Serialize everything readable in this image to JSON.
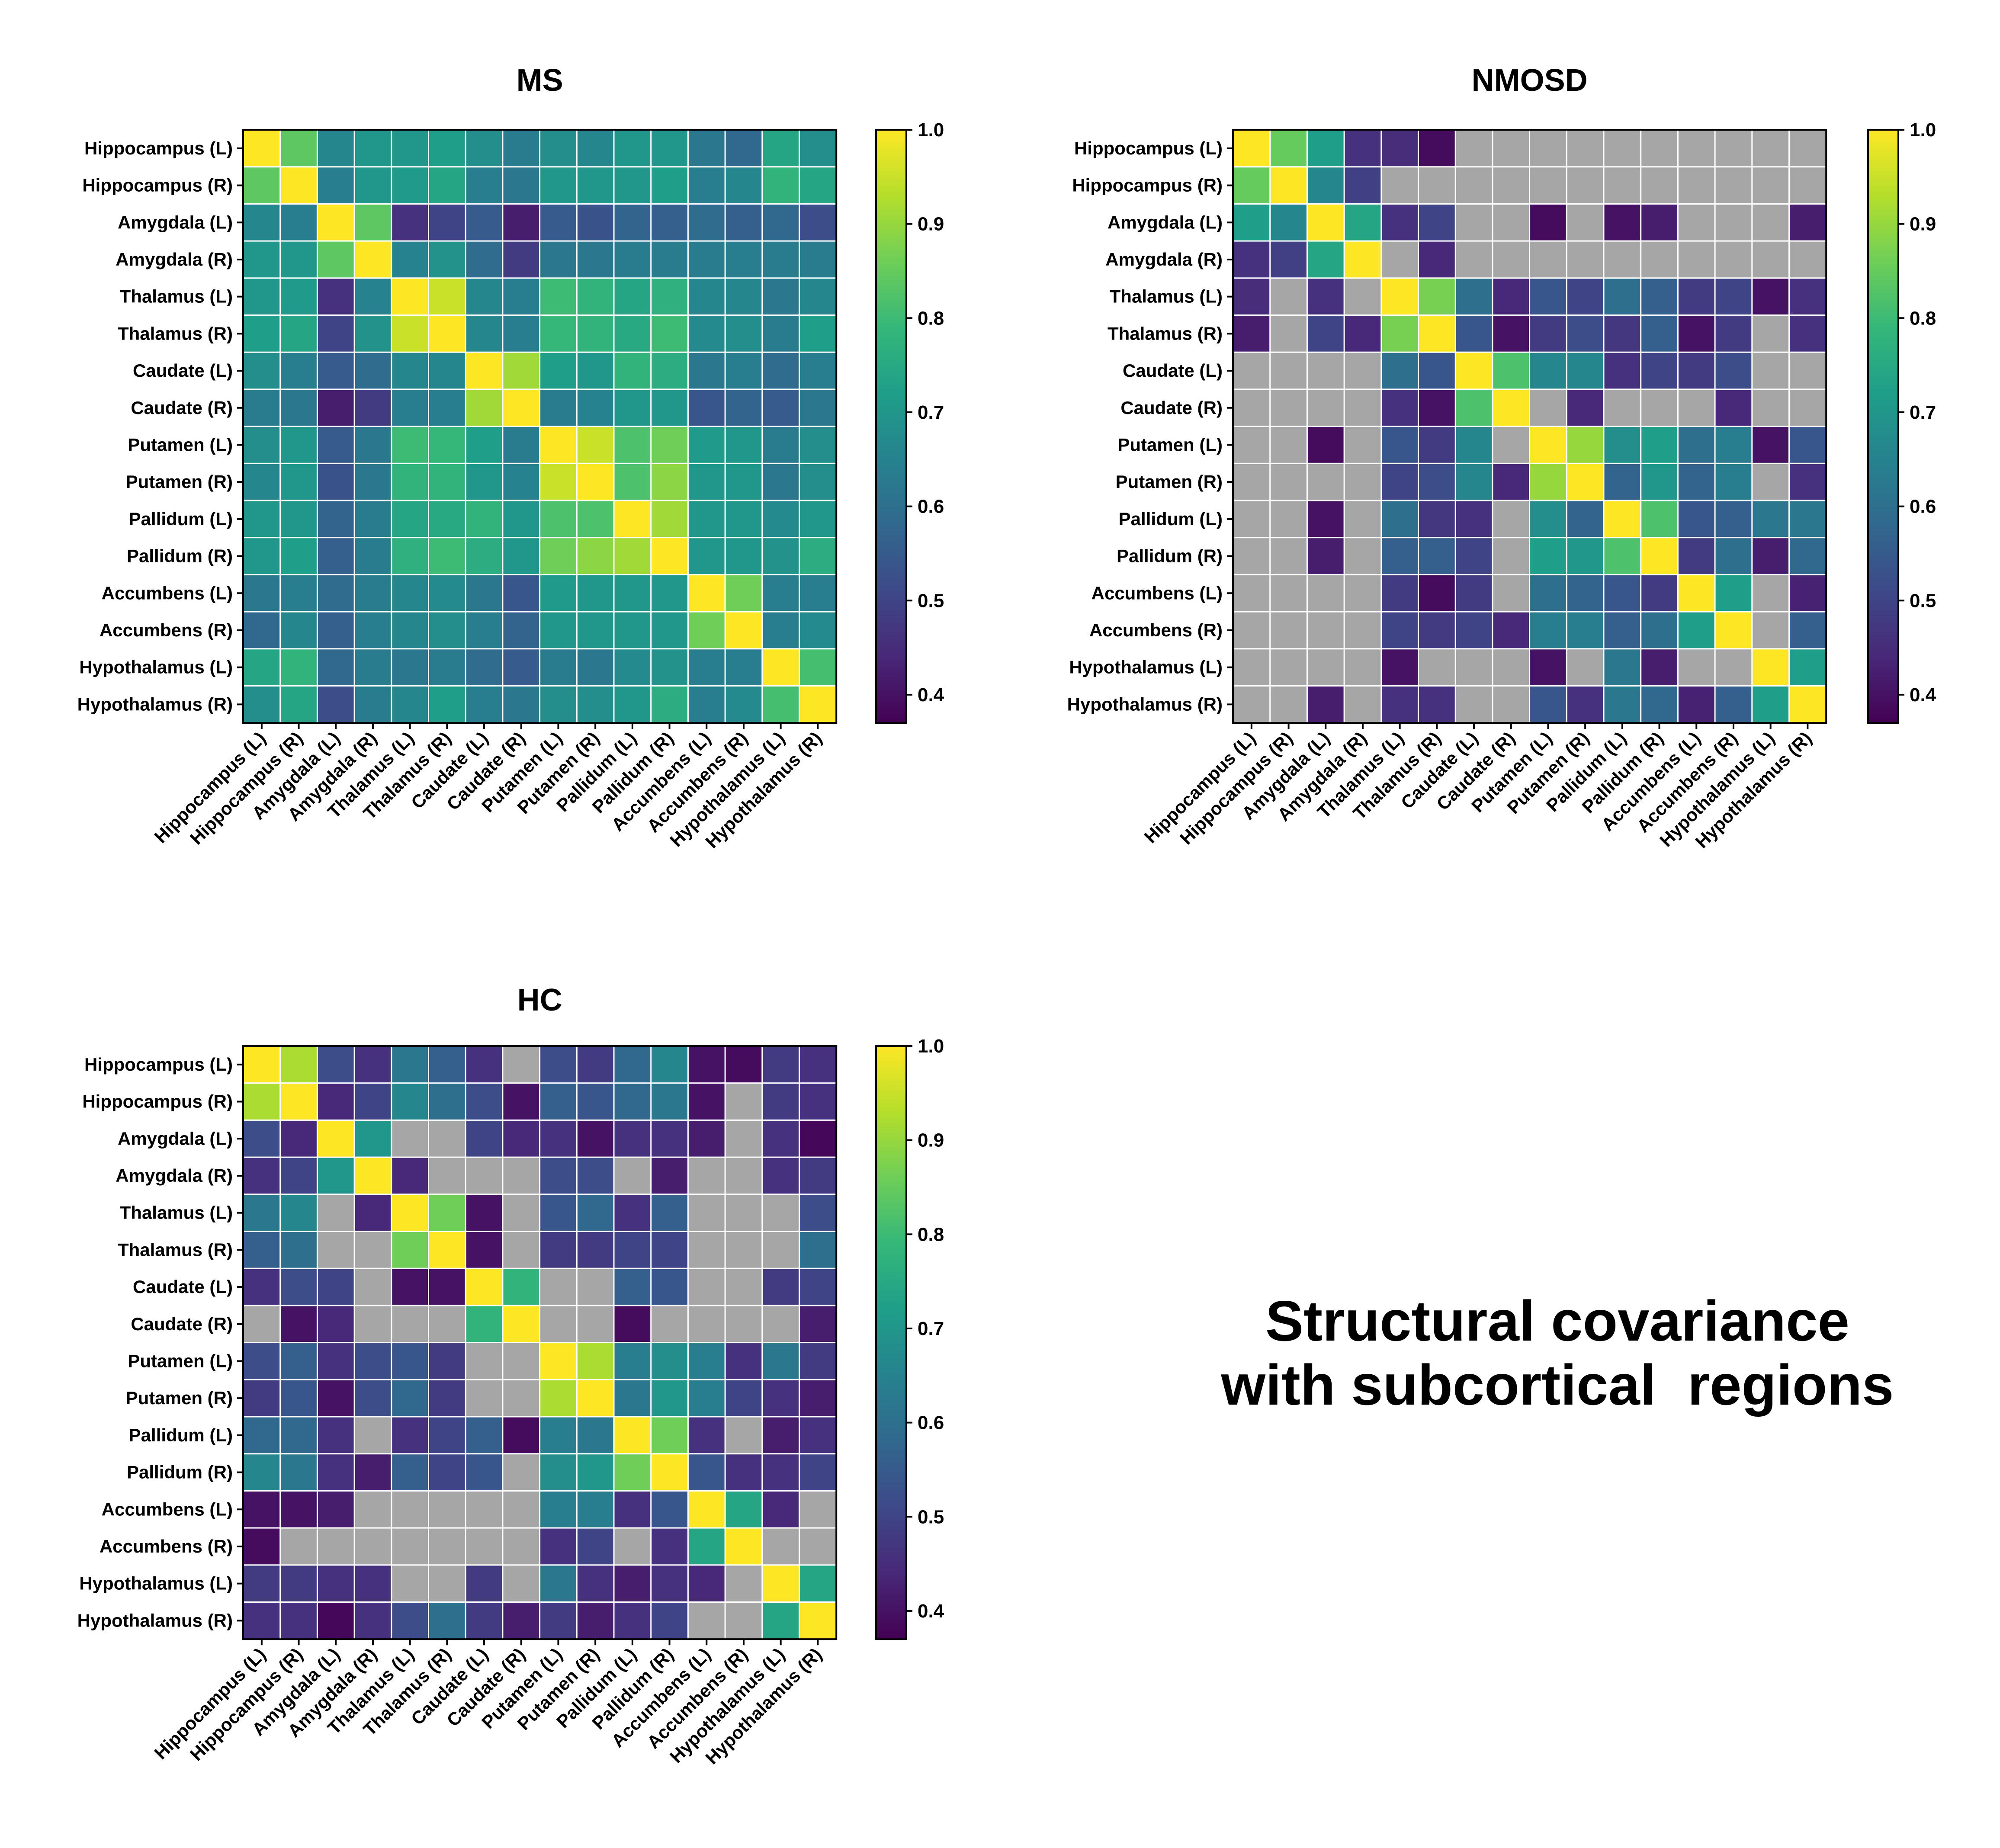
{
  "caption": {
    "line1": "Structural covariance",
    "line2": "with subcortical  regions"
  },
  "colors": {
    "missing": "#a6a6a6",
    "cell_border": "#ffffff",
    "viridis_stops": [
      "#440154",
      "#482878",
      "#3e4989",
      "#31688e",
      "#26828e",
      "#1f9e89",
      "#35b779",
      "#6ece58",
      "#b5de2b",
      "#fde725"
    ]
  },
  "chart_data": [
    {
      "type": "heatmap",
      "title": "MS",
      "regions": [
        "Hippocampus (L)",
        "Hippocampus (R)",
        "Amygdala (L)",
        "Amygdala (R)",
        "Thalamus (L)",
        "Thalamus (R)",
        "Caudate (L)",
        "Caudate (R)",
        "Putamen (L)",
        "Putamen (R)",
        "Pallidum (L)",
        "Pallidum (R)",
        "Accumbens (L)",
        "Accumbens (R)",
        "Hypothalamus (L)",
        "Hypothalamus (R)"
      ],
      "colorbar": {
        "min": 0.37,
        "max": 1.0,
        "ticks": [
          1.0,
          0.9,
          0.8,
          0.7,
          0.6,
          0.5,
          0.4
        ],
        "tick_labels": [
          "1.0",
          "0.9",
          "0.8",
          "0.7",
          "0.6",
          "0.5",
          "0.4"
        ]
      },
      "matrix": [
        [
          1.0,
          0.84,
          0.66,
          0.7,
          0.7,
          0.72,
          0.68,
          0.63,
          0.68,
          0.66,
          0.7,
          0.7,
          0.62,
          0.58,
          0.74,
          0.68
        ],
        [
          0.84,
          1.0,
          0.64,
          0.7,
          0.71,
          0.74,
          0.64,
          0.62,
          0.7,
          0.7,
          0.7,
          0.72,
          0.64,
          0.66,
          0.78,
          0.74
        ],
        [
          0.66,
          0.64,
          1.0,
          0.84,
          0.46,
          0.5,
          0.55,
          0.42,
          0.55,
          0.53,
          0.57,
          0.56,
          0.59,
          0.56,
          0.58,
          0.52
        ],
        [
          0.7,
          0.7,
          0.84,
          1.0,
          0.65,
          0.69,
          0.59,
          0.48,
          0.62,
          0.62,
          0.63,
          0.63,
          0.63,
          0.64,
          0.63,
          0.63
        ],
        [
          0.7,
          0.71,
          0.46,
          0.65,
          1.0,
          0.95,
          0.66,
          0.64,
          0.8,
          0.78,
          0.74,
          0.77,
          0.66,
          0.66,
          0.62,
          0.66
        ],
        [
          0.72,
          0.74,
          0.5,
          0.69,
          0.95,
          1.0,
          0.66,
          0.64,
          0.79,
          0.78,
          0.75,
          0.8,
          0.67,
          0.68,
          0.63,
          0.72
        ],
        [
          0.68,
          0.64,
          0.55,
          0.59,
          0.66,
          0.66,
          1.0,
          0.91,
          0.72,
          0.7,
          0.78,
          0.76,
          0.62,
          0.64,
          0.59,
          0.64
        ],
        [
          0.63,
          0.62,
          0.42,
          0.48,
          0.64,
          0.64,
          0.91,
          1.0,
          0.63,
          0.65,
          0.7,
          0.7,
          0.54,
          0.57,
          0.55,
          0.62
        ],
        [
          0.68,
          0.7,
          0.55,
          0.62,
          0.8,
          0.79,
          0.72,
          0.63,
          1.0,
          0.95,
          0.82,
          0.86,
          0.71,
          0.7,
          0.63,
          0.68
        ],
        [
          0.66,
          0.7,
          0.53,
          0.62,
          0.78,
          0.78,
          0.7,
          0.65,
          0.95,
          1.0,
          0.82,
          0.89,
          0.7,
          0.7,
          0.62,
          0.68
        ],
        [
          0.7,
          0.7,
          0.57,
          0.63,
          0.74,
          0.75,
          0.78,
          0.7,
          0.82,
          0.82,
          1.0,
          0.91,
          0.7,
          0.7,
          0.67,
          0.7
        ],
        [
          0.7,
          0.72,
          0.56,
          0.63,
          0.77,
          0.8,
          0.76,
          0.7,
          0.86,
          0.89,
          0.91,
          1.0,
          0.7,
          0.7,
          0.69,
          0.76
        ],
        [
          0.62,
          0.64,
          0.59,
          0.63,
          0.66,
          0.67,
          0.62,
          0.54,
          0.71,
          0.7,
          0.7,
          0.7,
          1.0,
          0.86,
          0.64,
          0.64
        ],
        [
          0.58,
          0.66,
          0.56,
          0.64,
          0.66,
          0.68,
          0.64,
          0.57,
          0.7,
          0.7,
          0.7,
          0.7,
          0.86,
          1.0,
          0.64,
          0.67
        ],
        [
          0.74,
          0.78,
          0.58,
          0.63,
          0.62,
          0.63,
          0.59,
          0.55,
          0.63,
          0.62,
          0.67,
          0.69,
          0.64,
          0.64,
          1.0,
          0.81
        ],
        [
          0.68,
          0.74,
          0.52,
          0.63,
          0.66,
          0.72,
          0.64,
          0.62,
          0.68,
          0.68,
          0.7,
          0.76,
          0.64,
          0.67,
          0.81,
          1.0
        ]
      ]
    },
    {
      "type": "heatmap",
      "title": "NMOSD",
      "regions": [
        "Hippocampus (L)",
        "Hippocampus (R)",
        "Amygdala (L)",
        "Amygdala (R)",
        "Thalamus (L)",
        "Thalamus (R)",
        "Caudate (L)",
        "Caudate (R)",
        "Putamen (L)",
        "Putamen (R)",
        "Pallidum (L)",
        "Pallidum (R)",
        "Accumbens (L)",
        "Accumbens (R)",
        "Hypothalamus (L)",
        "Hypothalamus (R)"
      ],
      "colorbar": {
        "min": 0.37,
        "max": 1.0,
        "ticks": [
          1.0,
          0.9,
          0.8,
          0.7,
          0.6,
          0.5,
          0.4
        ],
        "tick_labels": [
          "1.0",
          "0.9",
          "0.8",
          "0.7",
          "0.6",
          "0.5",
          "0.4"
        ]
      },
      "matrix": [
        [
          1.0,
          0.85,
          0.72,
          0.46,
          0.45,
          0.39,
          null,
          null,
          null,
          null,
          null,
          null,
          null,
          null,
          null,
          null
        ],
        [
          0.85,
          1.0,
          0.66,
          0.49,
          null,
          null,
          null,
          null,
          null,
          null,
          null,
          null,
          null,
          null,
          null,
          null
        ],
        [
          0.72,
          0.66,
          1.0,
          0.74,
          0.46,
          0.5,
          null,
          null,
          0.39,
          null,
          0.4,
          0.42,
          null,
          null,
          null,
          0.42
        ],
        [
          0.46,
          0.49,
          0.74,
          1.0,
          null,
          0.44,
          null,
          null,
          null,
          null,
          null,
          null,
          null,
          null,
          null,
          null
        ],
        [
          0.45,
          null,
          0.46,
          null,
          1.0,
          0.87,
          0.6,
          0.44,
          0.54,
          0.5,
          0.6,
          0.56,
          0.48,
          0.5,
          0.4,
          0.46
        ],
        [
          0.42,
          null,
          0.5,
          0.44,
          0.87,
          1.0,
          0.54,
          0.4,
          0.48,
          0.52,
          0.47,
          0.56,
          0.4,
          0.48,
          null,
          0.46
        ],
        [
          null,
          null,
          null,
          null,
          0.6,
          0.54,
          1.0,
          0.82,
          0.66,
          0.66,
          0.46,
          0.5,
          0.48,
          0.52,
          null,
          null
        ],
        [
          null,
          null,
          null,
          null,
          0.46,
          0.4,
          0.82,
          1.0,
          null,
          0.44,
          null,
          null,
          null,
          0.44,
          null,
          null
        ],
        [
          null,
          null,
          0.39,
          null,
          0.54,
          0.48,
          0.66,
          null,
          1.0,
          0.9,
          0.68,
          0.72,
          0.6,
          0.64,
          0.4,
          0.54
        ],
        [
          null,
          null,
          null,
          null,
          0.5,
          0.52,
          0.66,
          0.44,
          0.9,
          1.0,
          0.57,
          0.7,
          0.57,
          0.64,
          null,
          0.46
        ],
        [
          null,
          null,
          0.4,
          null,
          0.6,
          0.47,
          0.46,
          null,
          0.68,
          0.57,
          1.0,
          0.82,
          0.54,
          0.56,
          0.62,
          0.62
        ],
        [
          null,
          null,
          0.42,
          null,
          0.56,
          0.56,
          0.5,
          null,
          0.72,
          0.7,
          0.82,
          1.0,
          0.48,
          0.6,
          0.42,
          0.58
        ],
        [
          null,
          null,
          null,
          null,
          0.48,
          0.39,
          0.48,
          null,
          0.6,
          0.57,
          0.54,
          0.48,
          1.0,
          0.72,
          null,
          0.43
        ],
        [
          null,
          null,
          null,
          null,
          0.5,
          0.48,
          0.5,
          0.44,
          0.64,
          0.64,
          0.56,
          0.6,
          0.72,
          1.0,
          null,
          0.56
        ],
        [
          null,
          null,
          null,
          null,
          0.4,
          null,
          null,
          null,
          0.4,
          null,
          0.62,
          0.42,
          null,
          null,
          1.0,
          0.72
        ],
        [
          null,
          null,
          0.42,
          null,
          0.46,
          0.46,
          null,
          null,
          0.54,
          0.46,
          0.62,
          0.58,
          0.43,
          0.56,
          0.72,
          1.0
        ]
      ]
    },
    {
      "type": "heatmap",
      "title": "HC",
      "regions": [
        "Hippocampus (L)",
        "Hippocampus (R)",
        "Amygdala (L)",
        "Amygdala (R)",
        "Thalamus (L)",
        "Thalamus (R)",
        "Caudate (L)",
        "Caudate (R)",
        "Putamen (L)",
        "Putamen (R)",
        "Pallidum (L)",
        "Pallidum (R)",
        "Accumbens (L)",
        "Accumbens (R)",
        "Hypothalamus (L)",
        "Hypothalamus (R)"
      ],
      "colorbar": {
        "min": 0.37,
        "max": 1.0,
        "ticks": [
          1.0,
          0.9,
          0.8,
          0.7,
          0.6,
          0.5,
          0.4
        ],
        "tick_labels": [
          "1.0",
          "0.9",
          "0.8",
          "0.7",
          "0.6",
          "0.5",
          "0.4"
        ]
      },
      "matrix": [
        [
          1.0,
          0.92,
          0.52,
          0.46,
          0.62,
          0.56,
          0.46,
          null,
          0.52,
          0.48,
          0.58,
          0.66,
          0.4,
          0.39,
          0.48,
          0.46
        ],
        [
          0.92,
          1.0,
          0.44,
          0.5,
          0.66,
          0.6,
          0.52,
          0.4,
          0.56,
          0.54,
          0.58,
          0.62,
          0.4,
          null,
          0.48,
          0.46
        ],
        [
          0.52,
          0.44,
          1.0,
          0.7,
          null,
          null,
          0.5,
          0.44,
          0.46,
          0.4,
          0.46,
          0.46,
          0.42,
          null,
          0.46,
          0.38
        ],
        [
          0.46,
          0.5,
          0.7,
          1.0,
          0.44,
          null,
          null,
          null,
          0.52,
          0.52,
          null,
          0.42,
          null,
          null,
          0.46,
          0.48
        ],
        [
          0.62,
          0.66,
          null,
          0.44,
          1.0,
          0.86,
          0.4,
          null,
          0.54,
          0.58,
          0.46,
          0.56,
          null,
          null,
          null,
          0.52
        ],
        [
          0.56,
          0.6,
          null,
          null,
          0.86,
          1.0,
          0.4,
          null,
          0.48,
          0.48,
          0.5,
          0.5,
          null,
          null,
          null,
          0.6
        ],
        [
          0.46,
          0.52,
          0.5,
          null,
          0.4,
          0.4,
          1.0,
          0.78,
          null,
          null,
          0.56,
          0.54,
          null,
          null,
          0.48,
          0.5
        ],
        [
          null,
          0.4,
          0.44,
          null,
          null,
          null,
          0.78,
          1.0,
          null,
          null,
          0.39,
          null,
          null,
          null,
          null,
          0.42
        ],
        [
          0.52,
          0.56,
          0.46,
          0.52,
          0.54,
          0.48,
          null,
          null,
          1.0,
          0.92,
          0.64,
          0.68,
          0.64,
          0.46,
          0.62,
          0.48
        ],
        [
          0.48,
          0.54,
          0.4,
          0.52,
          0.58,
          0.48,
          null,
          null,
          0.92,
          1.0,
          0.62,
          0.7,
          0.64,
          0.5,
          0.46,
          0.42
        ],
        [
          0.58,
          0.58,
          0.46,
          null,
          0.46,
          0.5,
          0.56,
          0.39,
          0.64,
          0.62,
          1.0,
          0.86,
          0.46,
          null,
          0.42,
          0.46
        ],
        [
          0.66,
          0.62,
          0.46,
          0.42,
          0.56,
          0.5,
          0.54,
          null,
          0.68,
          0.7,
          0.86,
          1.0,
          0.54,
          0.46,
          0.46,
          0.5
        ],
        [
          0.4,
          0.4,
          0.42,
          null,
          null,
          null,
          null,
          null,
          0.64,
          0.64,
          0.46,
          0.54,
          1.0,
          0.74,
          0.44,
          null
        ],
        [
          0.39,
          null,
          null,
          null,
          null,
          null,
          null,
          null,
          0.46,
          0.5,
          null,
          0.46,
          0.74,
          1.0,
          null,
          null
        ],
        [
          0.48,
          0.48,
          0.46,
          0.46,
          null,
          null,
          0.48,
          null,
          0.62,
          0.46,
          0.42,
          0.46,
          0.44,
          null,
          1.0,
          0.74
        ],
        [
          0.46,
          0.46,
          0.38,
          0.46,
          0.52,
          0.6,
          0.48,
          0.42,
          0.48,
          0.42,
          0.46,
          0.5,
          null,
          null,
          0.74,
          1.0
        ]
      ]
    }
  ]
}
